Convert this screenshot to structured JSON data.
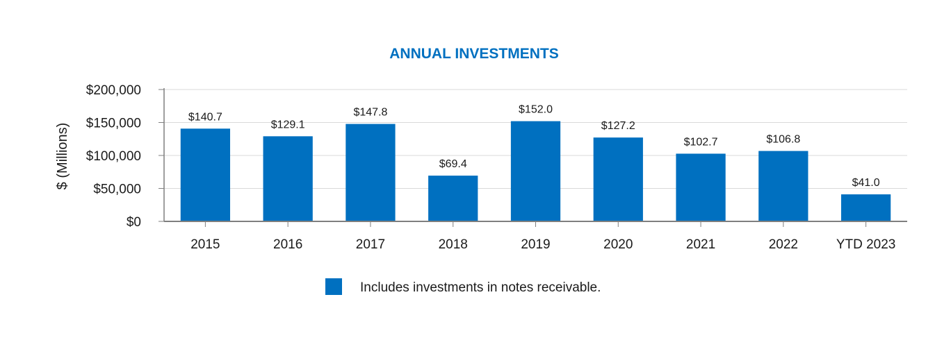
{
  "chart_data": {
    "type": "bar",
    "title": "ANNUAL INVESTMENTS",
    "ylabel": "$ (Millions)",
    "xlabel": "",
    "categories": [
      "2015",
      "2016",
      "2017",
      "2018",
      "2019",
      "2020",
      "2021",
      "2022",
      "YTD 2023"
    ],
    "values": [
      140700,
      129100,
      147800,
      69400,
      152000,
      127200,
      102700,
      106800,
      41000
    ],
    "data_labels": [
      "$140.7",
      "$129.1",
      "$147.8",
      "$69.4",
      "$152.0",
      "$127.2",
      "$102.7",
      "$106.8",
      "$41.0"
    ],
    "ylim": [
      0,
      200000
    ],
    "yticks": [
      0,
      50000,
      100000,
      150000,
      200000
    ],
    "ytick_labels": [
      "$0",
      "$50,000",
      "$100,000",
      "$150,000",
      "$200,000"
    ],
    "grid": true,
    "legend": {
      "position": "bottom",
      "entries": [
        {
          "label": "Includes investments in notes receivable.",
          "color": "#0070c0"
        }
      ]
    },
    "colors": {
      "bar": "#0070c0",
      "title": "#0070c0",
      "grid": "#d9d9d9",
      "axis": "#7f7f7f"
    }
  }
}
